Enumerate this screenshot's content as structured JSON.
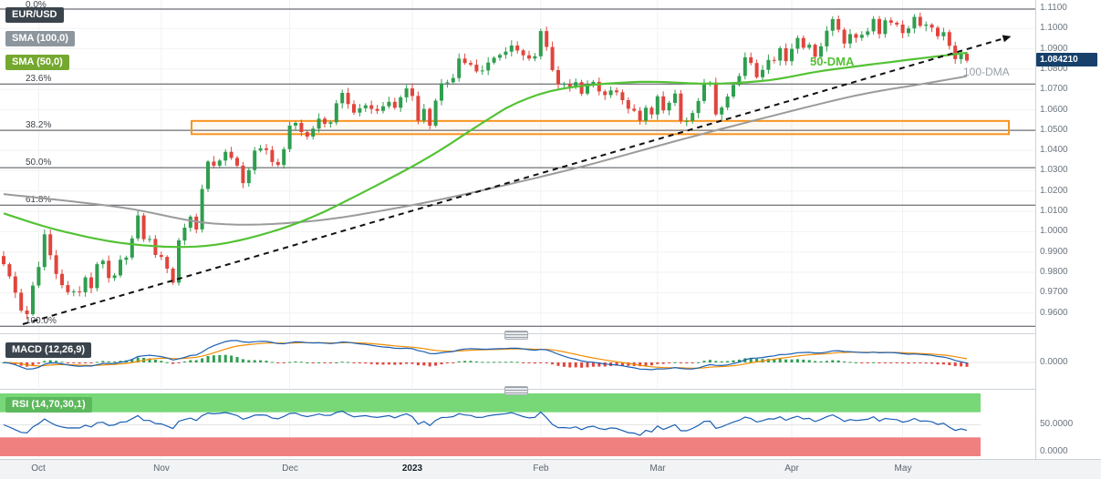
{
  "legend": {
    "symbol": "EUR/USD",
    "sma100": "SMA (100,0)",
    "sma50": "SMA (50,0)",
    "macd": "MACD (12,26,9)",
    "rsi": "RSI (14,70,30,1)"
  },
  "annotations": {
    "dma50": "50-DMA",
    "dma100": "100-DMA",
    "price_badge": "1.084210"
  },
  "axes": {
    "price_ticks": [
      "1.1100",
      "1.1000",
      "1.0900",
      "1.0800",
      "1.0700",
      "1.0600",
      "1.0500",
      "1.0400",
      "1.0300",
      "1.0200",
      "1.0100",
      "1.0000",
      "0.9900",
      "0.9800",
      "0.9700",
      "0.9600"
    ],
    "macd_zero": "0.0000",
    "rsi_mid": "50.0000",
    "rsi_low": "0.0000"
  },
  "colors": {
    "candle_up": "#2f9e4f",
    "candle_down": "#e0453c",
    "sma50": "#53c234",
    "sma100": "#9b9b9b",
    "macd_line": "#1a5fb4",
    "macd_signal": "#f08c00",
    "hist_up": "#2f9e4f",
    "hist_down": "#e0453c",
    "rsi_line": "#1a5fb4",
    "band_green": "#78d878",
    "band_red": "#f08080",
    "zone": "#f7941e",
    "badge_bg": "#17406b",
    "chip_dark": "#3b444c",
    "chip_gray": "#8e969d",
    "chip_green": "#74a82f",
    "chip_rsi": "#5cb85c",
    "trendline": "#111111"
  },
  "chart_data": {
    "type": "candlestick",
    "symbol": "EUR/USD",
    "timeframe": "1D",
    "x_range": [
      "Oct 2022",
      "May 2023"
    ],
    "price_axis_range": [
      1.114,
      0.95
    ],
    "current_price": 1.08421,
    "closes": [
      0.984,
      0.978,
      0.97,
      0.9612,
      0.9594,
      0.9735,
      0.9826,
      0.9987,
      0.9884,
      0.9792,
      0.9737,
      0.9702,
      0.9706,
      0.9702,
      0.9775,
      0.9722,
      0.984,
      0.9857,
      0.9772,
      0.9785,
      0.9862,
      0.9873,
      0.9967,
      1.008,
      0.9963,
      0.9964,
      0.9885,
      0.9876,
      0.9818,
      0.9749,
      0.9957,
      1.002,
      1.0074,
      1.0011,
      1.021,
      1.0345,
      1.0325,
      1.035,
      1.0393,
      1.0363,
      1.0325,
      1.0239,
      1.0303,
      1.0399,
      1.041,
      1.0402,
      1.0343,
      1.0328,
      1.0406,
      1.0522,
      1.0535,
      1.049,
      1.0468,
      1.0507,
      1.0556,
      1.0531,
      1.0538,
      1.0632,
      1.0683,
      1.0628,
      1.0586,
      1.0607,
      1.0622,
      1.0604,
      1.0594,
      1.0617,
      1.0639,
      1.061,
      1.0661,
      1.0705,
      1.0668,
      1.0546,
      1.0604,
      1.0522,
      1.0645,
      1.073,
      1.0735,
      1.0756,
      1.0852,
      1.083,
      1.0822,
      1.0789,
      1.0793,
      1.0832,
      1.0856,
      1.087,
      1.0886,
      1.0916,
      1.0892,
      1.0868,
      1.0852,
      1.0863,
      1.0987,
      1.0909,
      1.0795,
      1.0724,
      1.0727,
      1.0713,
      1.0736,
      1.0679,
      1.072,
      1.0737,
      1.069,
      1.0672,
      1.0695,
      1.0686,
      1.0647,
      1.0605,
      1.0595,
      1.0546,
      1.061,
      1.0577,
      1.0666,
      1.0597,
      1.0634,
      1.068,
      1.0545,
      1.0545,
      1.0584,
      1.0643,
      1.0729,
      1.0734,
      1.0577,
      1.0611,
      1.0665,
      1.0722,
      1.0766,
      1.0858,
      1.083,
      1.076,
      1.0796,
      1.0845,
      1.0842,
      1.0903,
      1.0839,
      1.09,
      1.0953,
      1.0905,
      1.092,
      1.0861,
      1.0912,
      1.0989,
      1.1046,
      1.0994,
      1.0926,
      1.0972,
      1.0954,
      1.0969,
      1.0986,
      1.1047,
      1.0973,
      1.104,
      1.1028,
      1.1019,
      1.0977,
      1.1,
      1.1057,
      1.1013,
      1.1019,
      1.1004,
      1.0962,
      1.0982,
      1.0915,
      1.0849,
      1.0875,
      1.0842
    ],
    "months": [
      {
        "label": "Oct",
        "i": 6
      },
      {
        "label": "Nov",
        "i": 27
      },
      {
        "label": "Dec",
        "i": 49
      },
      {
        "label": "2023",
        "i": 70,
        "bold": true
      },
      {
        "label": "Feb",
        "i": 92
      },
      {
        "label": "Mar",
        "i": 112
      },
      {
        "label": "Apr",
        "i": 135
      },
      {
        "label": "May",
        "i": 154
      }
    ],
    "indicators": {
      "sma": [
        [
          100,
          0
        ],
        [
          50,
          0
        ]
      ],
      "macd": [
        12,
        26,
        9
      ],
      "rsi": [
        14,
        70,
        30,
        1
      ]
    },
    "sma50_anchors": [
      [
        0,
        1.009
      ],
      [
        9,
        1.001
      ],
      [
        20,
        0.9945
      ],
      [
        31,
        0.9925
      ],
      [
        40,
        0.9955
      ],
      [
        51,
        1.005
      ],
      [
        62,
        1.02
      ],
      [
        73,
        1.037
      ],
      [
        82,
        1.0535
      ],
      [
        88,
        1.0635
      ],
      [
        96,
        1.0705
      ],
      [
        109,
        1.0737
      ],
      [
        121,
        1.0728
      ],
      [
        131,
        1.0745
      ],
      [
        140,
        1.079
      ],
      [
        152,
        1.0835
      ],
      [
        165,
        1.088
      ]
    ],
    "sma100_anchors": [
      [
        0,
        1.0185
      ],
      [
        20,
        1.012
      ],
      [
        36,
        1.004
      ],
      [
        52,
        1.005
      ],
      [
        68,
        1.012
      ],
      [
        83,
        1.021
      ],
      [
        99,
        1.032
      ],
      [
        115,
        1.0445
      ],
      [
        131,
        1.0565
      ],
      [
        146,
        1.067
      ],
      [
        158,
        1.073
      ],
      [
        165,
        1.0765
      ]
    ],
    "fib_levels": [
      {
        "label": "0.0%",
        "price": 1.1095
      },
      {
        "label": "23.6%",
        "price": 1.0727
      },
      {
        "label": "38.2%",
        "price": 1.0499
      },
      {
        "label": "50.0%",
        "price": 1.0315
      },
      {
        "label": "61.8%",
        "price": 1.0131
      },
      {
        "label": "100.0%",
        "price": 0.9535
      }
    ],
    "zone_box": {
      "x1_frac": 0.185,
      "x2_frac": 0.974,
      "price_top": 1.0545,
      "price_bottom": 1.048
    },
    "trendline": {
      "x1_frac": 0.022,
      "price1": 0.9545,
      "x2_frac": 0.969,
      "price2": 1.095
    }
  }
}
